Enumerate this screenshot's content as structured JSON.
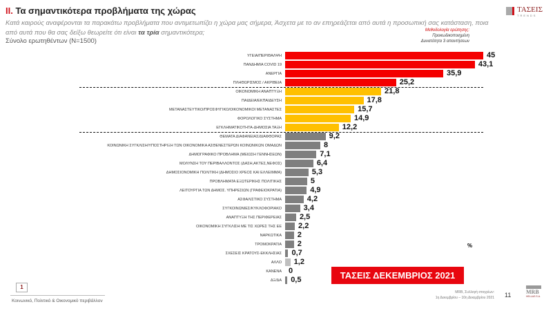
{
  "header": {
    "title_num": "II.",
    "title": "Τα σημαντικότερα προβλήματα της χώρας",
    "question_part1": "Κατά καιρούς αναφέρονται τα παρακάτω προβλήματα που αντιμετωπίζει η χώρα μας σήμερα, Άσχετα με το αν επηρεάζεται από αυτά η προσωπική σας κατάσταση, ποια από αυτά που θα σας δείξω θεωρείτε ότι είναι ",
    "question_bold": "τα τρία",
    "question_part2": " σημαντικότερα;",
    "total": "Σύνολο ερωτηθέντων (N=1500)",
    "logo_text": "ΤΑΣΕΙΣ",
    "logo_sub": "TRENDS",
    "method_title": "Μεθοδολογία ερώτησης:",
    "method_line1": "Προκωδικοποιημένη",
    "method_line2": "Δυνατότητα 3 απαντήσεων"
  },
  "chart_data": {
    "type": "bar",
    "orientation": "horizontal",
    "categories": [
      "ΥΓΕΙΑ/ΠΕΡΙΘΑΛΨΗ",
      "ΠΑΝΔΗΜΙΑ COVID 19",
      "ΑΝΕΡΓΙΑ",
      "ΠΛΗΘΩΡΙΣΜΟΣ / ΑΚΡΙΒΕΙΑ",
      "ΟΙΚΟΝΟΜΙΚΗ ΑΝΑΠΤΥΞΗ",
      "ΠΑΙΔΕΙΑ/ΕΚΠΑΙΔΕΥΣΗ",
      "ΜΕΤΑΝΑΣΤΕΥΤΙΚΟ/ΠΡΟΣΦΥΓΙΚΟ/ΟΙΚΟΝΟΜΙΚΟΙ ΜΕΤΑΝΑΣΤΕΣ",
      "ΦΟΡΟΛΟΓΙΚΟ ΣΥΣΤΗΜΑ",
      "ΕΓΚΛΗΜΑΤΙΚΟΤΗΤΑ-ΔΗΜΟΣΙΑ ΤΑΞΗ",
      "ΘΕΜΑΤΑ ΔΙΑΦΑΝΕΙΑΣ/ΔΙΑΦΘΟΡΑΣ",
      "ΚΟΙΝΩΝΙΚΗ ΣΥΓΚΛΙΣΗ/ΥΠΟΣΤΗΡΙΞΗ ΤΩΝ ΟΙΚΟΝΟΜΙΚΑ ΑΣΘΕΝΕΣΤΕΡΩΝ ΚΟΙΝΩΝΙΚΩΝ ΟΜΑΔΩΝ",
      "ΔΗΜΟΓΡΑΦΙΚΟ ΠΡΟΒΛΗΜΑ (ΜΕΙΩΣΗ ΓΕΝΝΗΣΕΩΝ)",
      "ΜΟΛΥΝΣΗ ΤΟΥ ΠΕΡΙΒΑΛΛΟΝΤΟΣ (ΔΑΣΗ,ΑΚΤΕΣ,ΝΕΦΟΣ)",
      "ΔΗΜΟΣΙΟΝΟΜΙΚΗ ΠΟΛΙΤΙΚΗ (ΔΗΜΟΣΙΟ ΧΡΕΟΣ ΚΑΙ ΕΛΛΕΙΜΜΑ)",
      "ΠΡΟΒΛΗΜΑΤΑ ΕΞΩΤΕΡΙΚΗΣ ΠΟΛΙΤΙΚΗΣ",
      "ΛΕΙΤΟΥΡΓΙΑ ΤΩΝ ΔΗΜΟΣ. ΥΠΗΡΕΣΙΩΝ (ΓΡΑΦΕΙΟΚΡΑΤΙΑ)",
      "ΑΣΦΑΛΙΣΤΙΚΟ ΣΥΣΤΗΜΑ",
      "ΣΥΓΚΟΙΝΩΝΙΕΣ/ΚΥΚΛΟΦΟΡΙΑΚΟ",
      "ΑΝΑΠΤΥΞΗ ΤΗΣ ΠΕΡΙΦΕΡΕΙΑΣ",
      "ΟΙΚΟΝΟΜΙΚΗ ΣΥΓΚΛΙΣΗ ΜΕ ΤΙΣ ΧΩΡΕΣ ΤΗΣ ΕΕ",
      "ΝΑΡΚΩΤΙΚΑ",
      "ΤΡΟΜΟΚΡΑΤΙΑ",
      "ΣΧΕΣΕΙΣ ΚΡΑΤΟΥΣ-ΕΚΚΛΗΣΙΑΣ",
      "ΑΛΛΟ",
      "ΚΑΝΕΝΑ",
      "ΔΞ/ΔΑ"
    ],
    "values": [
      45,
      43.1,
      35.9,
      25.2,
      21.8,
      17.8,
      15.7,
      14.9,
      12.2,
      9.2,
      8,
      7.1,
      6.4,
      5.3,
      5,
      4.9,
      4.2,
      3.4,
      2.5,
      2.2,
      2,
      2,
      0.7,
      1.2,
      0,
      0.5
    ],
    "labels": [
      "45",
      "43,1",
      "35,9",
      "25,2",
      "21,8",
      "17,8",
      "15,7",
      "14,9",
      "12,2",
      "9,2",
      "8",
      "7,1",
      "6,4",
      "5,3",
      "5",
      "4,9",
      "4,2",
      "3,4",
      "2,5",
      "2,2",
      "2",
      "2",
      "0,7",
      "1,2",
      "0",
      "0,5"
    ],
    "colors": [
      "#f40000",
      "#f40000",
      "#f40000",
      "#f40000",
      "#ffc000",
      "#ffc000",
      "#ffc000",
      "#ffc000",
      "#ffc000",
      "#7f7f7f",
      "#7f7f7f",
      "#7f7f7f",
      "#7f7f7f",
      "#7f7f7f",
      "#7f7f7f",
      "#7f7f7f",
      "#7f7f7f",
      "#7f7f7f",
      "#7f7f7f",
      "#7f7f7f",
      "#7f7f7f",
      "#7f7f7f",
      "#7f7f7f",
      "#bfbfbf",
      "#7f7f7f",
      "#7f7f7f"
    ],
    "group_separators_after": [
      4,
      9
    ],
    "unit": "%",
    "xlim": [
      0,
      45
    ],
    "grid": false
  },
  "banner": "ΤΑΣΕΙΣ ΔΕΚΕΜΒΡΙΟΣ 2021",
  "footer": {
    "section_num": "1",
    "section": "Κοινωνικό, Πολιτικό & Οικονομικό περιβάλλον",
    "source1": "MRB, Συλλογή στοιχείων:",
    "source2": "1η Δεκεμβρίου – 10η Δεκεμβρίου 2021",
    "page": "11",
    "mrb": "MRB",
    "mrb_sub": "HELLAS S.A."
  }
}
